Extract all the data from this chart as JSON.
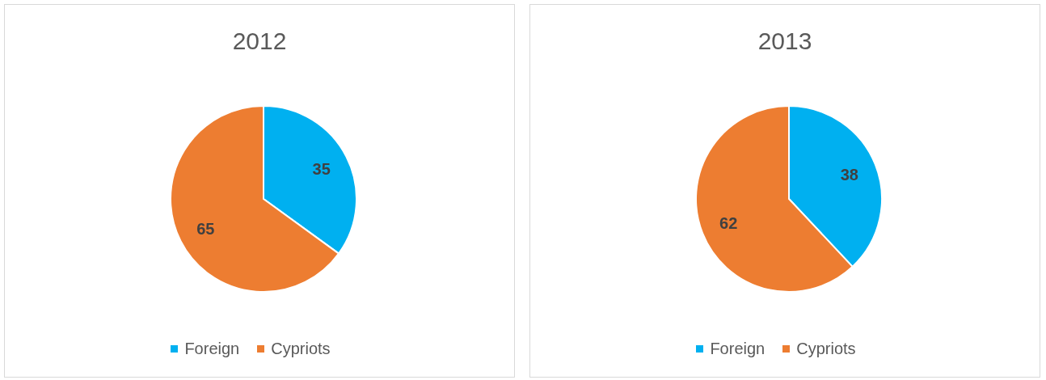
{
  "chart_data": [
    {
      "type": "pie",
      "title": "2012",
      "categories": [
        "Foreign",
        "Cypriots"
      ],
      "values": [
        35,
        65
      ],
      "colors": [
        "#00b0f0",
        "#ed7d31"
      ],
      "data_labels": true,
      "legend": "bottom"
    },
    {
      "type": "pie",
      "title": "2013",
      "categories": [
        "Foreign",
        "Cypriots"
      ],
      "values": [
        38,
        62
      ],
      "colors": [
        "#00b0f0",
        "#ed7d31"
      ],
      "data_labels": true,
      "legend": "bottom"
    }
  ]
}
